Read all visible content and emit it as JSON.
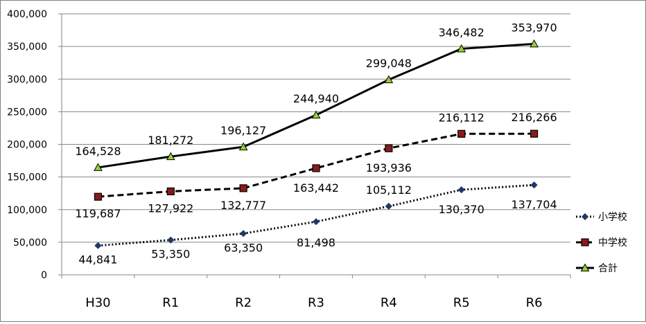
{
  "chart_data": {
    "type": "line",
    "categories": [
      "H30",
      "R1",
      "R2",
      "R3",
      "R4",
      "R5",
      "R6"
    ],
    "ylim": [
      0,
      400000
    ],
    "yticks": [
      0,
      50000,
      100000,
      150000,
      200000,
      250000,
      300000,
      350000,
      400000
    ],
    "ytick_labels": [
      "0",
      "50,000",
      "100,000",
      "150,000",
      "200,000",
      "250,000",
      "300,000",
      "350,000",
      "400,000"
    ],
    "grid": true,
    "legend_position": "right",
    "series": [
      {
        "name": "小学校",
        "values": [
          44841,
          53350,
          63350,
          81498,
          105112,
          130370,
          137704
        ],
        "labels": [
          "44,841",
          "53,350",
          "63,350",
          "81,498",
          "105,112",
          "130,370",
          "137,704"
        ],
        "line_style": "dotted",
        "marker": "diamond",
        "marker_color": "#1f3864"
      },
      {
        "name": "中学校",
        "values": [
          119687,
          127922,
          132777,
          163442,
          193936,
          216112,
          216266
        ],
        "labels": [
          "119,687",
          "127,922",
          "132,777",
          "163,442",
          "193,936",
          "216,112",
          "216,266"
        ],
        "line_style": "dashed",
        "marker": "square",
        "marker_color": "#8b1a1a"
      },
      {
        "name": "合計",
        "values": [
          164528,
          181272,
          196127,
          244940,
          299048,
          346482,
          353970
        ],
        "labels": [
          "164,528",
          "181,272",
          "196,127",
          "244,940",
          "299,048",
          "346,482",
          "353,970"
        ],
        "line_style": "solid",
        "marker": "triangle",
        "marker_color": "#9acd32"
      }
    ]
  }
}
